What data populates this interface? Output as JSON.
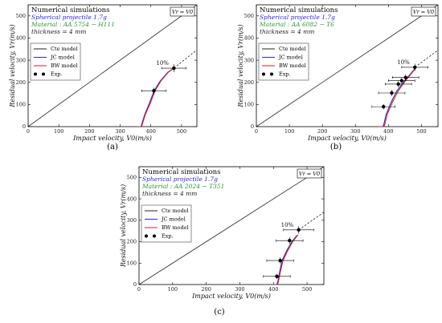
{
  "colors": {
    "cte": "#222222",
    "jc": "#1f2fd8",
    "bw": "#d71f1f",
    "exp": "#000000",
    "title_blue": "#2a2ad6",
    "material_green": "#2f9a2f"
  },
  "shared": {
    "header": "Numerical simulations",
    "projectile": "Spherical projectile 1.7g",
    "thickness": "thickness = 4 mm",
    "corner_label": "Vr = V0",
    "annotation": "10%",
    "xlabel": "Impact velocity, V0(m/s)",
    "ylabel": "Residual velocity, Vr(m/s)",
    "legend": [
      "Cte model",
      "JC model",
      "BW model",
      "Exp."
    ]
  },
  "chart_data": [
    {
      "type": "line",
      "panel_label": "(a)",
      "material": "Material : AA 5754 − H111",
      "xlim": [
        0,
        550
      ],
      "ylim": [
        0,
        550
      ],
      "xticks": [
        0,
        100,
        200,
        300,
        400,
        500
      ],
      "yticks": [
        0,
        100,
        200,
        300,
        400,
        500
      ],
      "series": [
        {
          "name": "Cte model",
          "x": [
            0,
            550
          ],
          "y": [
            0,
            550
          ]
        },
        {
          "name": "JC model",
          "x": [
            352,
            368,
            370,
            380,
            395,
            410,
            430,
            455,
            475
          ],
          "y": [
            0,
            0,
            10,
            55,
            105,
            160,
            205,
            245,
            265
          ]
        },
        {
          "name": "BW model",
          "x": [
            355,
            370,
            372,
            382,
            398,
            413,
            433,
            457,
            477
          ],
          "y": [
            0,
            0,
            10,
            55,
            105,
            160,
            207,
            246,
            266
          ]
        },
        {
          "name": "Exp.",
          "x": [
            410,
            475
          ],
          "y": [
            162,
            264
          ],
          "xerr": [
            40,
            40
          ],
          "yerr": [
            14,
            18
          ]
        }
      ]
    },
    {
      "type": "line",
      "panel_label": "(b)",
      "material": "Material : AA 6082 − T6",
      "xlim": [
        0,
        550
      ],
      "ylim": [
        0,
        550
      ],
      "xticks": [
        0,
        100,
        200,
        300,
        400,
        500
      ],
      "yticks": [
        0,
        100,
        200,
        300,
        400,
        500
      ],
      "series": [
        {
          "name": "Cte model",
          "x": [
            0,
            550
          ],
          "y": [
            0,
            550
          ]
        },
        {
          "name": "JC model",
          "x": [
            368,
            383,
            386,
            393,
            408,
            425,
            445,
            465,
            480
          ],
          "y": [
            0,
            0,
            10,
            55,
            110,
            160,
            200,
            235,
            262
          ]
        },
        {
          "name": "BW model",
          "x": [
            370,
            386,
            389,
            396,
            412,
            429,
            449,
            468,
            482
          ],
          "y": [
            0,
            0,
            10,
            55,
            110,
            160,
            202,
            237,
            263
          ]
        },
        {
          "name": "Exp.",
          "x": [
            385,
            410,
            430,
            440,
            452,
            480
          ],
          "y": [
            90,
            152,
            192,
            208,
            222,
            268
          ],
          "xerr": [
            35,
            40,
            40,
            40,
            40,
            40
          ],
          "yerr": [
            12,
            14,
            14,
            14,
            14,
            16
          ]
        }
      ]
    },
    {
      "type": "line",
      "panel_label": "(c)",
      "material": "Material : AA 2024 − T351",
      "xlim": [
        0,
        550
      ],
      "ylim": [
        0,
        550
      ],
      "xticks": [
        0,
        100,
        200,
        300,
        400,
        500
      ],
      "yticks": [
        0,
        100,
        200,
        300,
        400,
        500
      ],
      "series": [
        {
          "name": "Cte model",
          "x": [
            0,
            550
          ],
          "y": [
            0,
            550
          ]
        },
        {
          "name": "JC model",
          "x": [
            398,
            410,
            413,
            418,
            425,
            440,
            455,
            470
          ],
          "y": [
            0,
            0,
            15,
            55,
            110,
            160,
            200,
            230
          ]
        },
        {
          "name": "BW model",
          "x": [
            400,
            412,
            415,
            420,
            428,
            443,
            458,
            473
          ],
          "y": [
            0,
            0,
            15,
            55,
            110,
            160,
            202,
            232
          ]
        },
        {
          "name": "Exp.",
          "x": [
            410,
            420,
            448,
            475
          ],
          "y": [
            38,
            112,
            205,
            255
          ],
          "xerr": [
            40,
            40,
            40,
            45
          ],
          "yerr": [
            12,
            14,
            16,
            18
          ]
        }
      ]
    }
  ]
}
